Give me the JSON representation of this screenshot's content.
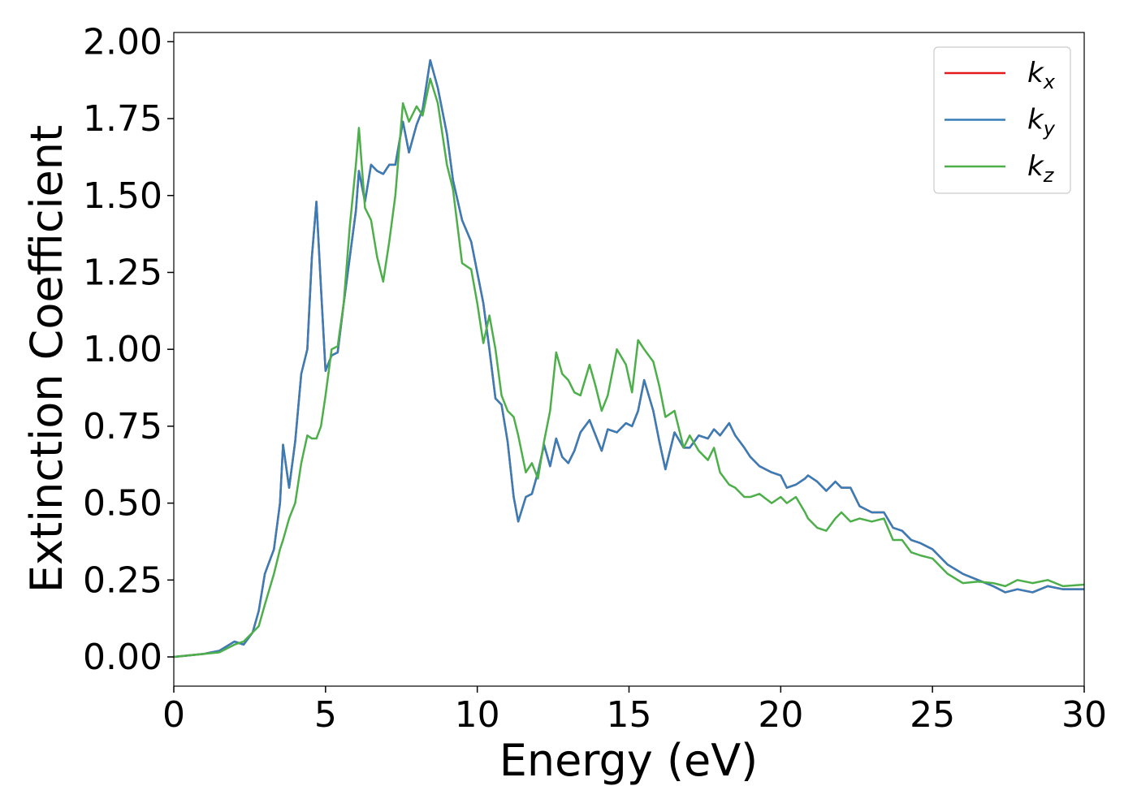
{
  "chart_data": {
    "type": "line",
    "xlabel": "Energy (eV)",
    "ylabel": "Extinction Coefficient",
    "xlim": [
      0,
      30
    ],
    "ylim": [
      -0.095,
      2.03
    ],
    "xticks": [
      0,
      5,
      10,
      15,
      20,
      25,
      30
    ],
    "yticks": [
      {
        "value": 0,
        "label": "0.00"
      },
      0.25,
      {
        "value": 0.5,
        "label": "0.50"
      },
      0.75,
      {
        "value": 1,
        "label": "1.00"
      },
      1.25,
      {
        "value": 1.5,
        "label": "1.50"
      },
      1.75,
      {
        "value": 2,
        "label": "2.00"
      }
    ],
    "legend": "upper right",
    "grid": false,
    "x": [
      0,
      1,
      1.5,
      2,
      2.3,
      2.6,
      2.8,
      3,
      3.3,
      3.5,
      3.6,
      3.8,
      4,
      4.2,
      4.4,
      4.55,
      4.7,
      4.85,
      5,
      5.2,
      5.4,
      5.6,
      5.8,
      6,
      6.1,
      6.3,
      6.5,
      6.7,
      6.9,
      7.1,
      7.3,
      7.55,
      7.75,
      8,
      8.2,
      8.45,
      8.7,
      9,
      9.2,
      9.5,
      9.8,
      10,
      10.2,
      10.4,
      10.6,
      10.8,
      11,
      11.2,
      11.35,
      11.6,
      11.8,
      12,
      12.2,
      12.4,
      12.6,
      12.8,
      13,
      13.2,
      13.4,
      13.7,
      13.9,
      14.1,
      14.3,
      14.6,
      14.9,
      15.1,
      15.3,
      15.5,
      15.8,
      16,
      16.2,
      16.5,
      16.8,
      17,
      17.3,
      17.6,
      17.8,
      18,
      18.3,
      18.5,
      18.8,
      19,
      19.3,
      19.7,
      20,
      20.2,
      20.5,
      20.8,
      20.9,
      21.2,
      21.5,
      21.8,
      22,
      22.3,
      22.6,
      23,
      23.4,
      23.7,
      24,
      24.3,
      24.6,
      25,
      25.5,
      26,
      26.5,
      27,
      27.4,
      27.8,
      28.3,
      28.8,
      29.3,
      30
    ],
    "series": [
      {
        "name": "kx",
        "color": "#e41a1c",
        "values": [
          0,
          0.01,
          0.02,
          0.05,
          0.04,
          0.08,
          0.15,
          0.27,
          0.35,
          0.5,
          0.69,
          0.55,
          0.7,
          0.92,
          1.0,
          1.3,
          1.48,
          1.2,
          0.93,
          0.98,
          0.99,
          1.15,
          1.3,
          1.45,
          1.58,
          1.48,
          1.6,
          1.58,
          1.57,
          1.6,
          1.6,
          1.74,
          1.64,
          1.73,
          1.78,
          1.94,
          1.85,
          1.7,
          1.55,
          1.42,
          1.35,
          1.25,
          1.15,
          1.0,
          0.84,
          0.82,
          0.7,
          0.52,
          0.44,
          0.52,
          0.53,
          0.6,
          0.69,
          0.62,
          0.71,
          0.65,
          0.63,
          0.67,
          0.73,
          0.77,
          0.72,
          0.67,
          0.74,
          0.73,
          0.76,
          0.75,
          0.8,
          0.9,
          0.8,
          0.7,
          0.61,
          0.73,
          0.68,
          0.68,
          0.72,
          0.71,
          0.74,
          0.72,
          0.76,
          0.72,
          0.68,
          0.65,
          0.62,
          0.6,
          0.59,
          0.55,
          0.56,
          0.58,
          0.59,
          0.57,
          0.54,
          0.57,
          0.55,
          0.55,
          0.49,
          0.47,
          0.47,
          0.42,
          0.41,
          0.38,
          0.37,
          0.35,
          0.3,
          0.27,
          0.25,
          0.23,
          0.21,
          0.22,
          0.21,
          0.23,
          0.22,
          0.22
        ]
      },
      {
        "name": "ky",
        "color": "#377eb8",
        "values": [
          0,
          0.01,
          0.02,
          0.05,
          0.04,
          0.08,
          0.15,
          0.27,
          0.35,
          0.5,
          0.69,
          0.55,
          0.7,
          0.92,
          1.0,
          1.3,
          1.48,
          1.2,
          0.93,
          0.98,
          0.99,
          1.15,
          1.3,
          1.45,
          1.58,
          1.48,
          1.6,
          1.58,
          1.57,
          1.6,
          1.6,
          1.74,
          1.64,
          1.73,
          1.78,
          1.94,
          1.85,
          1.7,
          1.55,
          1.42,
          1.35,
          1.25,
          1.15,
          1.0,
          0.84,
          0.82,
          0.7,
          0.52,
          0.44,
          0.52,
          0.53,
          0.6,
          0.69,
          0.62,
          0.71,
          0.65,
          0.63,
          0.67,
          0.73,
          0.77,
          0.72,
          0.67,
          0.74,
          0.73,
          0.76,
          0.75,
          0.8,
          0.9,
          0.8,
          0.7,
          0.61,
          0.73,
          0.68,
          0.68,
          0.72,
          0.71,
          0.74,
          0.72,
          0.76,
          0.72,
          0.68,
          0.65,
          0.62,
          0.6,
          0.59,
          0.55,
          0.56,
          0.58,
          0.59,
          0.57,
          0.54,
          0.57,
          0.55,
          0.55,
          0.49,
          0.47,
          0.47,
          0.42,
          0.41,
          0.38,
          0.37,
          0.35,
          0.3,
          0.27,
          0.25,
          0.23,
          0.21,
          0.22,
          0.21,
          0.23,
          0.22,
          0.22
        ]
      },
      {
        "name": "kz",
        "color": "#4daf4a",
        "values": [
          0,
          0.01,
          0.015,
          0.04,
          0.05,
          0.08,
          0.1,
          0.17,
          0.27,
          0.35,
          0.38,
          0.45,
          0.5,
          0.63,
          0.72,
          0.71,
          0.71,
          0.75,
          0.85,
          1.0,
          1.01,
          1.15,
          1.4,
          1.6,
          1.72,
          1.46,
          1.42,
          1.3,
          1.22,
          1.35,
          1.5,
          1.8,
          1.74,
          1.79,
          1.76,
          1.88,
          1.8,
          1.6,
          1.52,
          1.28,
          1.26,
          1.15,
          1.02,
          1.11,
          1.0,
          0.85,
          0.8,
          0.78,
          0.72,
          0.6,
          0.63,
          0.58,
          0.7,
          0.8,
          0.99,
          0.92,
          0.9,
          0.86,
          0.85,
          0.95,
          0.88,
          0.8,
          0.85,
          1.0,
          0.95,
          0.86,
          1.03,
          1.0,
          0.96,
          0.88,
          0.78,
          0.8,
          0.68,
          0.72,
          0.67,
          0.64,
          0.68,
          0.6,
          0.56,
          0.55,
          0.52,
          0.52,
          0.53,
          0.5,
          0.52,
          0.5,
          0.52,
          0.47,
          0.45,
          0.42,
          0.41,
          0.45,
          0.47,
          0.44,
          0.45,
          0.44,
          0.45,
          0.38,
          0.38,
          0.34,
          0.33,
          0.32,
          0.27,
          0.24,
          0.245,
          0.24,
          0.23,
          0.25,
          0.24,
          0.25,
          0.23,
          0.235
        ]
      }
    ]
  }
}
